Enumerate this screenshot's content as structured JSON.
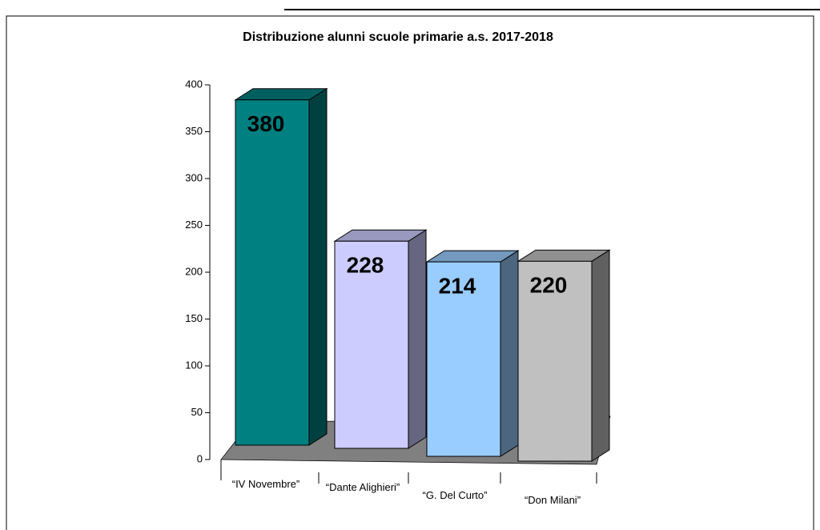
{
  "chart_data": {
    "type": "bar3d",
    "title": "Distribuzione alunni scuole primarie a.s. 2017-2018",
    "categories": [
      "“IV Novembre”",
      "“Dante Alighieri”",
      "“G. Del Curto”",
      "“Don Milani”"
    ],
    "values": [
      380,
      228,
      214,
      220
    ],
    "colors": [
      "#008080",
      "#ccccff",
      "#99ccff",
      "#c0c0c0"
    ],
    "ylim": [
      0,
      400
    ],
    "yticks": [
      0,
      50,
      100,
      150,
      200,
      250,
      300,
      350,
      400
    ]
  }
}
